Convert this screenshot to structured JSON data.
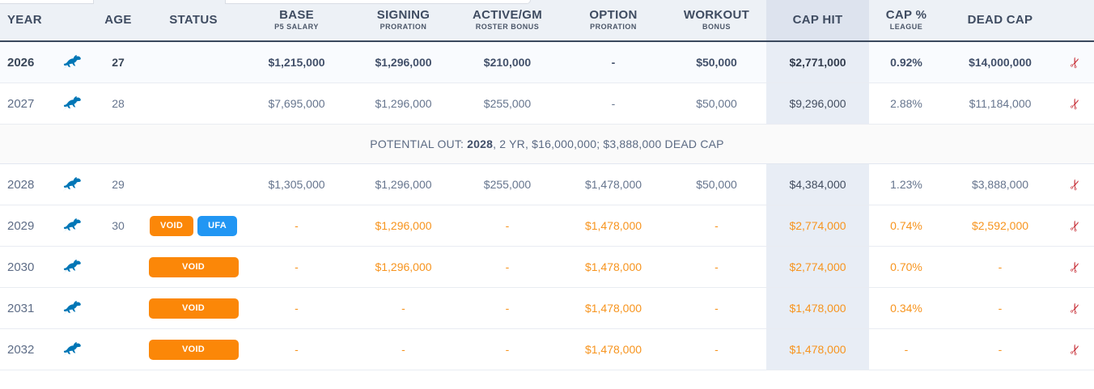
{
  "colors": {
    "accent_orange": "#f7941e",
    "badge_orange": "#fb8708",
    "badge_blue": "#2196f3",
    "scissors_red": "#c8323a",
    "lion_blue": "#0076b6",
    "caphit_column_bg": "#e8edf5",
    "header_bg": "#edf1f6"
  },
  "icons": {
    "cut": "✂",
    "team_logo": "lions-logo"
  },
  "header": {
    "columns": [
      {
        "id": "year",
        "label": "YEAR",
        "sub": ""
      },
      {
        "id": "age",
        "label": "AGE",
        "sub": ""
      },
      {
        "id": "status",
        "label": "STATUS",
        "sub": ""
      },
      {
        "id": "base",
        "label": "BASE",
        "sub": "P5 SALARY"
      },
      {
        "id": "signing",
        "label": "SIGNING",
        "sub": "PRORATION"
      },
      {
        "id": "active",
        "label": "ACTIVE/GM",
        "sub": "ROSTER BONUS"
      },
      {
        "id": "option",
        "label": "OPTION",
        "sub": "PRORATION"
      },
      {
        "id": "workout",
        "label": "WORKOUT",
        "sub": "BONUS"
      },
      {
        "id": "caphit",
        "label": "CAP HIT",
        "sub": "",
        "highlight": true
      },
      {
        "id": "cappct",
        "label": "CAP %",
        "sub": "LEAGUE"
      },
      {
        "id": "deadcap",
        "label": "DEAD CAP",
        "sub": ""
      }
    ]
  },
  "rows": [
    {
      "type": "year",
      "year": "2026",
      "age": "27",
      "style": "current",
      "badges": [],
      "values": {
        "base": "$1,215,000",
        "signing": "$1,296,000",
        "active": "$210,000",
        "option": "-",
        "workout": "$50,000",
        "caphit": "$2,771,000",
        "cappct": "0.92%",
        "deadcap": "$14,000,000"
      }
    },
    {
      "type": "year",
      "year": "2027",
      "age": "28",
      "style": "normal",
      "badges": [],
      "values": {
        "base": "$7,695,000",
        "signing": "$1,296,000",
        "active": "$255,000",
        "option": "-",
        "workout": "$50,000",
        "caphit": "$9,296,000",
        "cappct": "2.88%",
        "deadcap": "$11,184,000"
      }
    },
    {
      "type": "divider",
      "prefix": "POTENTIAL OUT:",
      "year": "2028",
      "detail": ", 2 YR, $16,000,000; $3,888,000 DEAD CAP"
    },
    {
      "type": "year",
      "year": "2028",
      "age": "29",
      "style": "normal",
      "badges": [],
      "values": {
        "base": "$1,305,000",
        "signing": "$1,296,000",
        "active": "$255,000",
        "option": "$1,478,000",
        "workout": "$50,000",
        "caphit": "$4,384,000",
        "cappct": "1.23%",
        "deadcap": "$3,888,000"
      }
    },
    {
      "type": "year",
      "year": "2029",
      "age": "30",
      "style": "void",
      "badges": [
        {
          "label": "VOID",
          "color": "orange",
          "wide": false
        },
        {
          "label": "UFA",
          "color": "blue",
          "wide": false
        }
      ],
      "values": {
        "base": "-",
        "signing": "$1,296,000",
        "active": "-",
        "option": "$1,478,000",
        "workout": "-",
        "caphit": "$2,774,000",
        "cappct": "0.74%",
        "deadcap": "$2,592,000"
      }
    },
    {
      "type": "year",
      "year": "2030",
      "age": "",
      "style": "void",
      "badges": [
        {
          "label": "VOID",
          "color": "orange",
          "wide": true
        }
      ],
      "values": {
        "base": "-",
        "signing": "$1,296,000",
        "active": "-",
        "option": "$1,478,000",
        "workout": "-",
        "caphit": "$2,774,000",
        "cappct": "0.70%",
        "deadcap": "-"
      }
    },
    {
      "type": "year",
      "year": "2031",
      "age": "",
      "style": "void",
      "badges": [
        {
          "label": "VOID",
          "color": "orange",
          "wide": true
        }
      ],
      "values": {
        "base": "-",
        "signing": "-",
        "active": "-",
        "option": "$1,478,000",
        "workout": "-",
        "caphit": "$1,478,000",
        "cappct": "0.34%",
        "deadcap": "-"
      }
    },
    {
      "type": "year",
      "year": "2032",
      "age": "",
      "style": "void",
      "badges": [
        {
          "label": "VOID",
          "color": "orange",
          "wide": true
        }
      ],
      "values": {
        "base": "-",
        "signing": "-",
        "active": "-",
        "option": "$1,478,000",
        "workout": "-",
        "caphit": "$1,478,000",
        "cappct": "-",
        "deadcap": "-"
      }
    }
  ]
}
